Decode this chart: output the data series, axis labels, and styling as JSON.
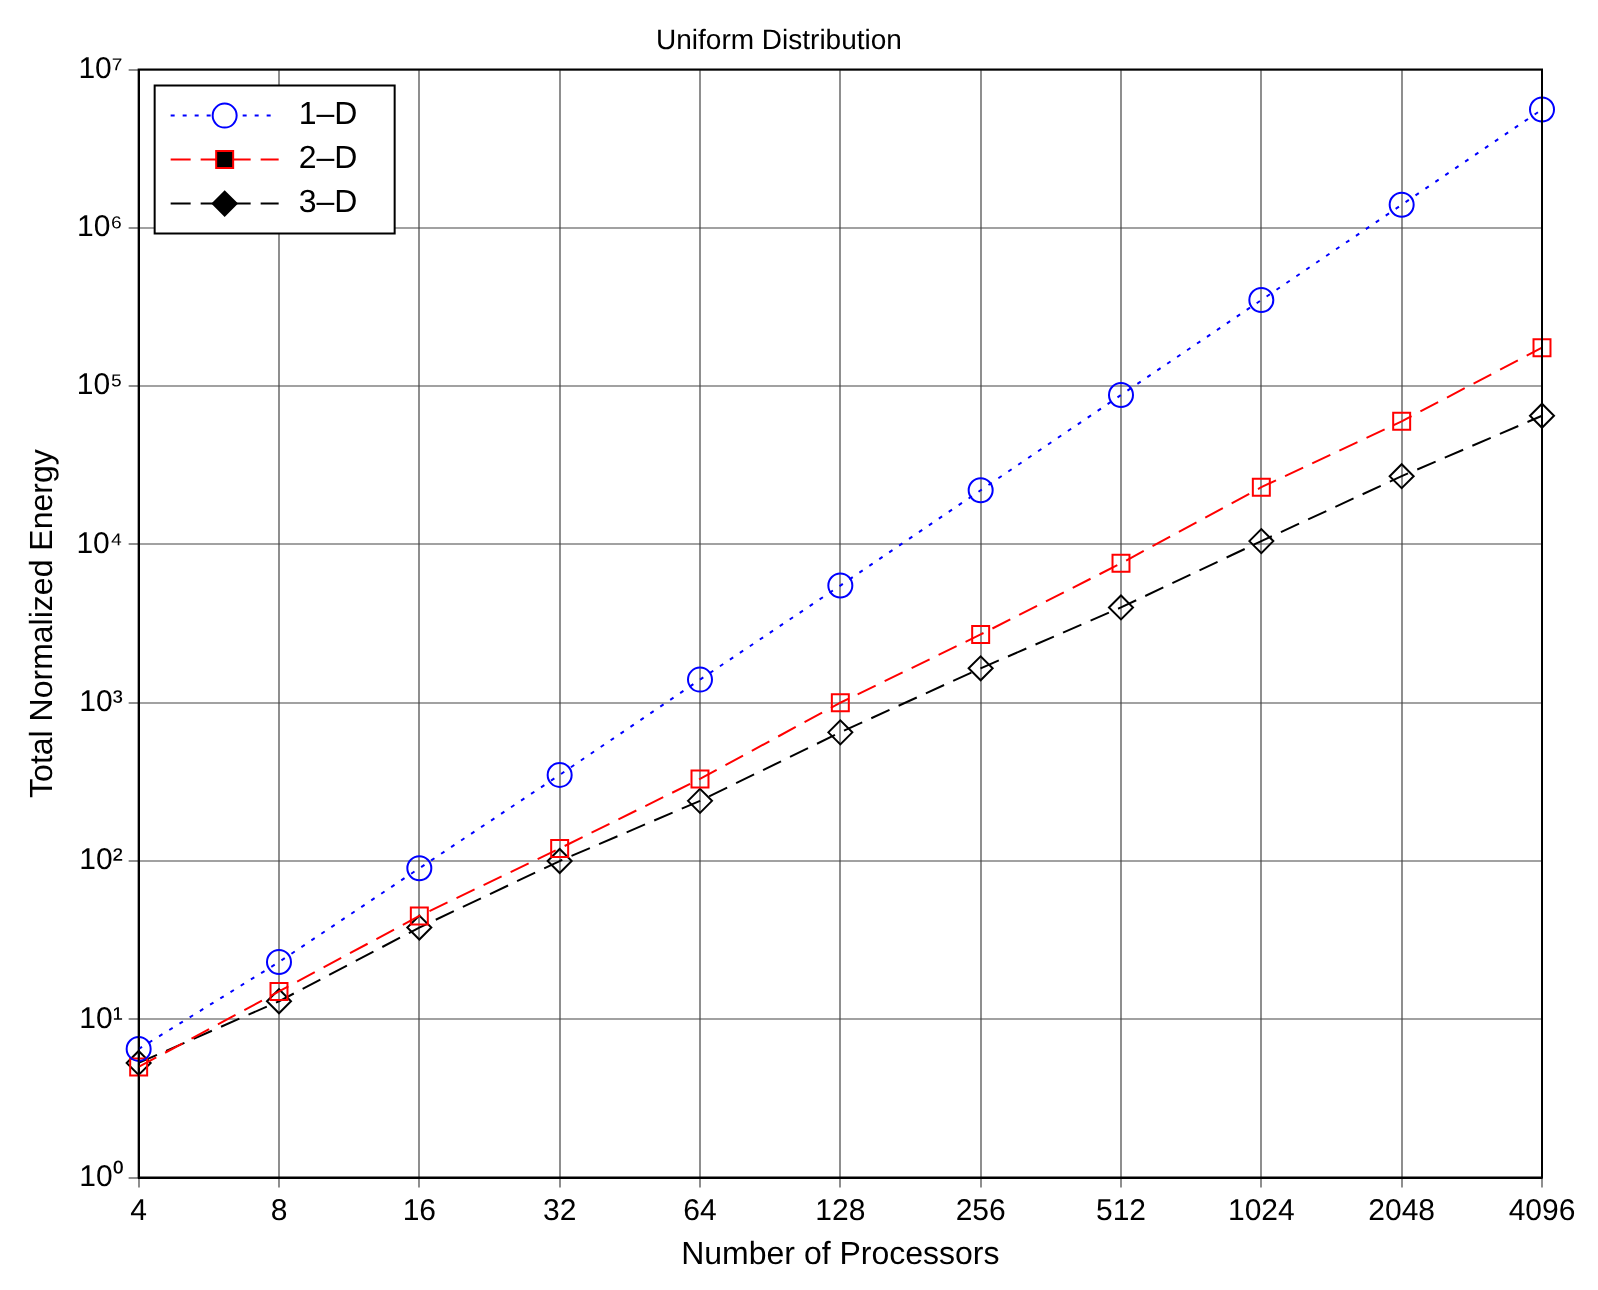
{
  "chart_data": {
    "type": "line",
    "title": "Uniform Distribution",
    "xlabel": "Number of Processors",
    "ylabel": "Total Normalized Energy",
    "categories": [
      "4",
      "8",
      "16",
      "32",
      "64",
      "128",
      "256",
      "512",
      "1024",
      "2048",
      "4096"
    ],
    "series": [
      {
        "name": "1–D",
        "color": "#0000ff",
        "marker": "circle",
        "line_style": "dotted",
        "values": [
          6.5,
          23,
          90,
          350,
          1400,
          5500,
          22000,
          88000,
          350000,
          1400000,
          5600000
        ]
      },
      {
        "name": "2–D",
        "color": "#ff0000",
        "marker": "square",
        "line_style": "dashed",
        "values": [
          5,
          15,
          45,
          120,
          330,
          1000,
          2700,
          7600,
          23000,
          60000,
          175000
        ]
      },
      {
        "name": "3–D",
        "color": "#000000",
        "marker": "diamond",
        "line_style": "dashed",
        "values": [
          5.3,
          13,
          38,
          100,
          240,
          650,
          1650,
          4000,
          10500,
          27000,
          65000
        ]
      }
    ],
    "log": "y",
    "ylim": [
      1,
      10000000
    ],
    "yticks": [
      {
        "value": 1,
        "label": "10⁰"
      },
      {
        "value": 10,
        "label": "10¹"
      },
      {
        "value": 100,
        "label": "10²"
      },
      {
        "value": 1000,
        "label": "10³"
      },
      {
        "value": 10000,
        "label": "10⁴"
      },
      {
        "value": 100000,
        "label": "10⁵"
      },
      {
        "value": 1000000,
        "label": "10⁶"
      },
      {
        "value": 10000000,
        "label": "10⁷"
      }
    ],
    "grid": true,
    "legend": "top left"
  }
}
